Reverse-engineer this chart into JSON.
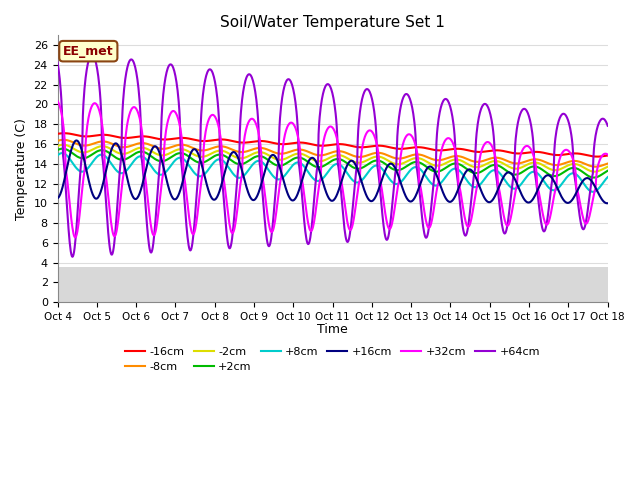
{
  "title": "Soil/Water Temperature Set 1",
  "xlabel": "Time",
  "ylabel": "Temperature (C)",
  "xlim": [
    0,
    14
  ],
  "ylim": [
    0,
    27
  ],
  "yticks": [
    0,
    2,
    4,
    6,
    8,
    10,
    12,
    14,
    16,
    18,
    20,
    22,
    24,
    26
  ],
  "xtick_labels": [
    "Oct 4",
    "Oct 5",
    "Oct 6",
    "Oct 7",
    "Oct 8",
    "Oct 9",
    "Oct 10",
    "Oct 11",
    "Oct 12",
    "Oct 13",
    "Oct 14",
    "Oct 15",
    "Oct 16",
    "Oct 17",
    "Oct 18"
  ],
  "annotation_text": "EE_met",
  "annotation_box_color": "#FFFFCC",
  "annotation_border_color": "#8B4513",
  "annotation_text_color": "#8B0000",
  "bg_color": "#FFFFFF",
  "plot_bg_color": "#FFFFFF",
  "series": {
    "-16cm": {
      "color": "#FF0000",
      "lw": 1.5
    },
    "-8cm": {
      "color": "#FF8C00",
      "lw": 1.5
    },
    "-2cm": {
      "color": "#DDDD00",
      "lw": 1.5
    },
    "+2cm": {
      "color": "#00BB00",
      "lw": 1.5
    },
    "+8cm": {
      "color": "#00CCCC",
      "lw": 1.5
    },
    "+16cm": {
      "color": "#000080",
      "lw": 1.5
    },
    "+32cm": {
      "color": "#FF00FF",
      "lw": 1.5
    },
    "+64cm": {
      "color": "#9400D3",
      "lw": 1.5
    }
  },
  "legend_ncol_row1": 6,
  "legend_ncol_row2": 2
}
